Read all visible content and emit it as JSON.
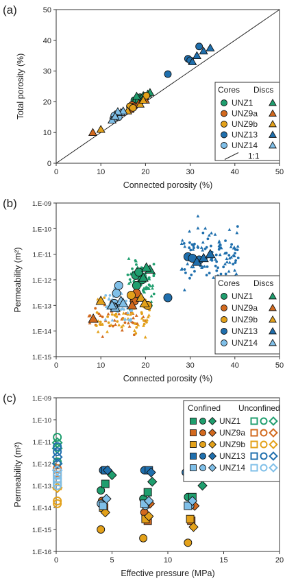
{
  "colors": {
    "UNZ1": "#1f9e6e",
    "UNZ9a": "#d2691e",
    "UNZ9b": "#e3a11a",
    "UNZ13": "#1f6fad",
    "UNZ14": "#7fbfe8"
  },
  "chart_data": [
    {
      "panel": "(a)",
      "type": "scatter",
      "xlabel": "Connected porosity (%)",
      "ylabel": "Total porosity (%)",
      "xlim": [
        0,
        50
      ],
      "ylim": [
        0,
        50
      ],
      "xticks": [
        "0",
        "10",
        "20",
        "30",
        "40",
        "50"
      ],
      "yticks": [
        "0",
        "10",
        "20",
        "30",
        "40",
        "50"
      ],
      "line_label": "1:1",
      "legend": {
        "headers": [
          "Cores",
          "Discs"
        ],
        "entries": [
          "UNZ1",
          "UNZ9a",
          "UNZ9b",
          "UNZ13",
          "UNZ14"
        ],
        "placement": "right"
      },
      "series": [
        {
          "name": "UNZ1",
          "marker": "circle",
          "points": [
            [
              17.5,
              20.5
            ],
            [
              18.2,
              21.0
            ],
            [
              18.8,
              21.5
            ],
            [
              19.2,
              21.2
            ],
            [
              17.8,
              19.8
            ],
            [
              18.5,
              20.2
            ]
          ]
        },
        {
          "name": "UNZ1",
          "marker": "triangle",
          "points": [
            [
              19.5,
              22.0
            ],
            [
              20.5,
              22.5
            ],
            [
              21.0,
              23.0
            ],
            [
              18.0,
              21.8
            ],
            [
              19.8,
              21.8
            ]
          ]
        },
        {
          "name": "UNZ9a",
          "marker": "circle",
          "points": [
            [
              17.0,
              19.0
            ],
            [
              17.5,
              18.5
            ],
            [
              16.8,
              18.2
            ]
          ]
        },
        {
          "name": "UNZ9a",
          "marker": "triangle",
          "points": [
            [
              8.2,
              10.0
            ],
            [
              18.5,
              19.5
            ],
            [
              20.0,
              20.5
            ],
            [
              16.5,
              17.5
            ]
          ]
        },
        {
          "name": "UNZ9b",
          "marker": "circle",
          "points": [
            [
              20.2,
              22.0
            ],
            [
              16.5,
              18.5
            ],
            [
              17.2,
              18.0
            ]
          ]
        },
        {
          "name": "UNZ9b",
          "marker": "triangle",
          "points": [
            [
              10.0,
              11.0
            ],
            [
              18.8,
              19.2
            ],
            [
              19.5,
              20.5
            ],
            [
              16.0,
              17.0
            ]
          ]
        },
        {
          "name": "UNZ13",
          "marker": "circle",
          "points": [
            [
              25.0,
              29.0
            ],
            [
              29.5,
              34.0
            ],
            [
              32.0,
              38.0
            ],
            [
              30.0,
              33.5
            ]
          ]
        },
        {
          "name": "UNZ13",
          "marker": "triangle",
          "points": [
            [
              31.5,
              35.0
            ],
            [
              33.0,
              36.5
            ],
            [
              34.5,
              37.5
            ],
            [
              30.5,
              33.0
            ]
          ]
        },
        {
          "name": "UNZ14",
          "marker": "circle",
          "points": [
            [
              12.8,
              14.5
            ],
            [
              13.5,
              16.0
            ],
            [
              14.0,
              15.0
            ],
            [
              13.0,
              15.5
            ]
          ]
        },
        {
          "name": "UNZ14",
          "marker": "triangle",
          "points": [
            [
              12.5,
              14.0
            ],
            [
              14.5,
              16.5
            ],
            [
              15.0,
              17.0
            ],
            [
              13.8,
              16.8
            ],
            [
              13.2,
              15.2
            ]
          ]
        }
      ]
    },
    {
      "panel": "(b)",
      "type": "scatter",
      "xlabel": "Connected porosity (%)",
      "ylabel": "Permeability (m²)",
      "xlim": [
        0,
        50
      ],
      "ylim_log10": [
        -15,
        -9
      ],
      "xticks": [
        "0",
        "10",
        "20",
        "30",
        "40",
        "50"
      ],
      "yticks": [
        "1.E-15",
        "1.E-14",
        "1.E-13",
        "1.E-12",
        "1.E-11",
        "1.E-10",
        "1.E-09"
      ],
      "legend": {
        "headers": [
          "Cores",
          "Discs"
        ],
        "entries": [
          "UNZ1",
          "UNZ9a",
          "UNZ9b",
          "UNZ13",
          "UNZ14"
        ],
        "placement": "bottom-right"
      },
      "series": [
        {
          "name": "UNZ1",
          "marker": "circle",
          "points": [
            [
              17.8,
              1.5e-12
            ],
            [
              18.5,
              2e-12
            ],
            [
              19.2,
              1e-12
            ],
            [
              18.0,
              6e-13
            ]
          ]
        },
        {
          "name": "UNZ1",
          "marker": "triangle",
          "points": [
            [
              21.0,
              2.5e-12
            ],
            [
              20.2,
              3e-12
            ],
            [
              19.5,
              1.2e-12
            ]
          ]
        },
        {
          "name": "UNZ9a",
          "marker": "circle",
          "points": [
            [
              17.5,
              1.5e-13
            ],
            [
              18.0,
              3e-13
            ]
          ]
        },
        {
          "name": "UNZ9a",
          "marker": "triangle",
          "points": [
            [
              8.3,
              3e-14
            ],
            [
              17.0,
              1e-13
            ]
          ]
        },
        {
          "name": "UNZ9b",
          "marker": "circle",
          "points": [
            [
              20.5,
              1e-13
            ],
            [
              16.8,
              2.5e-13
            ]
          ]
        },
        {
          "name": "UNZ9b",
          "marker": "triangle",
          "points": [
            [
              10.0,
              1.5e-13
            ],
            [
              19.0,
              2e-13
            ],
            [
              19.8,
              1.2e-13
            ]
          ]
        },
        {
          "name": "UNZ13",
          "marker": "circle",
          "points": [
            [
              25.0,
              2e-13
            ],
            [
              29.5,
              8e-12
            ],
            [
              32.0,
              6e-12
            ],
            [
              30.5,
              7e-12
            ]
          ]
        },
        {
          "name": "UNZ13",
          "marker": "triangle",
          "points": [
            [
              31.5,
              5e-12
            ],
            [
              33.0,
              7e-12
            ],
            [
              34.5,
              1e-11
            ]
          ]
        },
        {
          "name": "UNZ14",
          "marker": "circle",
          "points": [
            [
              13.0,
              1.2e-13
            ],
            [
              13.5,
              3e-13
            ],
            [
              14.0,
              6e-13
            ],
            [
              12.8,
              9e-14
            ]
          ]
        },
        {
          "name": "UNZ14",
          "marker": "triangle",
          "points": [
            [
              13.2,
              8e-14
            ],
            [
              14.5,
              1.5e-13
            ],
            [
              15.0,
              1.2e-13
            ],
            [
              12.5,
              1e-13
            ]
          ]
        }
      ],
      "scatter_clouds": [
        {
          "name": "UNZ1",
          "x_range": [
            16,
            22
          ],
          "log_range": [
            -13.5,
            -10.8
          ],
          "n": 70
        },
        {
          "name": "UNZ9a",
          "x_range": [
            7,
            20
          ],
          "log_range": [
            -14.5,
            -12.3
          ],
          "n": 45
        },
        {
          "name": "UNZ9b",
          "x_range": [
            9,
            21
          ],
          "log_range": [
            -14.5,
            -12.4
          ],
          "n": 55
        },
        {
          "name": "UNZ13",
          "x_range": [
            28,
            41
          ],
          "log_range": [
            -12.7,
            -9.3
          ],
          "n": 110
        },
        {
          "name": "UNZ14",
          "x_range": [
            11,
            17
          ],
          "log_range": [
            -13.8,
            -12.2
          ],
          "n": 60
        }
      ]
    },
    {
      "panel": "(c)",
      "type": "scatter",
      "xlabel": "Effective pressure (MPa)",
      "ylabel": "Permeability (m²)",
      "xlim": [
        0,
        20
      ],
      "ylim_log10": [
        -16,
        -9
      ],
      "xticks": [
        "0",
        "5",
        "10",
        "15",
        "20"
      ],
      "yticks": [
        "1.E-16",
        "1.E-15",
        "1.E-14",
        "1.E-13",
        "1.E-12",
        "1.E-11",
        "1.E-10",
        "1.E-09"
      ],
      "legend": {
        "headers": [
          "Confined",
          "Unconfined"
        ],
        "entries": [
          "UNZ1",
          "UNZ9a",
          "UNZ9b",
          "UNZ13",
          "UNZ14"
        ],
        "placement": "top-right"
      },
      "series": [
        {
          "name": "UNZ1",
          "marker": "circle",
          "points": [
            [
              4.0,
              6e-14
            ],
            [
              7.8,
              2.5e-14
            ],
            [
              11.8,
              3e-14
            ]
          ]
        },
        {
          "name": "UNZ1",
          "marker": "square",
          "points": [
            [
              4.4,
              1.2e-13
            ],
            [
              8.2,
              5e-14
            ],
            [
              12.2,
              3e-14
            ]
          ]
        },
        {
          "name": "UNZ1",
          "marker": "diamond",
          "points": [
            [
              5.0,
              3e-13
            ],
            [
              8.6,
              1.5e-13
            ],
            [
              13.1,
              1e-13
            ]
          ]
        },
        {
          "name": "UNZ9a",
          "marker": "circle",
          "points": [
            [
              4.1,
              2e-14
            ],
            [
              7.9,
              6e-15
            ],
            [
              11.9,
              1.2e-14
            ]
          ]
        },
        {
          "name": "UNZ9a",
          "marker": "square",
          "points": [
            [
              4.3,
              1e-14
            ],
            [
              8.2,
              2.5e-15
            ],
            [
              12.1,
              2.5e-15
            ]
          ]
        },
        {
          "name": "UNZ9a",
          "marker": "diamond",
          "points": [
            [
              4.5,
              2.5e-14
            ],
            [
              8.4,
              1.5e-14
            ],
            [
              12.4,
              1.2e-14
            ]
          ]
        },
        {
          "name": "UNZ9b",
          "marker": "circle",
          "points": [
            [
              4.0,
              1e-15
            ],
            [
              7.8,
              4e-16
            ],
            [
              11.8,
              2.5e-16
            ]
          ]
        },
        {
          "name": "UNZ9b",
          "marker": "square",
          "points": [
            [
              4.2,
              1e-14
            ],
            [
              8.0,
              3e-15
            ],
            [
              12.0,
              3e-15
            ]
          ]
        },
        {
          "name": "UNZ9b",
          "marker": "diamond",
          "points": [
            [
              4.4,
              6e-15
            ],
            [
              8.3,
              4e-15
            ],
            [
              12.3,
              1.3e-15
            ]
          ]
        },
        {
          "name": "UNZ13",
          "marker": "circle",
          "points": [
            [
              4.2,
              5e-13
            ],
            [
              7.9,
              5e-13
            ],
            [
              11.6,
              4e-13
            ]
          ]
        },
        {
          "name": "UNZ13",
          "marker": "square",
          "points": [
            [
              4.4,
              5e-13
            ],
            [
              8.3,
              5e-13
            ],
            [
              12.0,
              4e-13
            ]
          ]
        },
        {
          "name": "UNZ13",
          "marker": "diamond",
          "points": [
            [
              4.6,
              5e-13
            ],
            [
              8.5,
              4e-13
            ],
            [
              12.3,
              4e-13
            ]
          ]
        },
        {
          "name": "UNZ14",
          "marker": "circle",
          "points": [
            [
              4.0,
              1.5e-14
            ],
            [
              8.0,
              1.2e-14
            ],
            [
              12.0,
              1.2e-14
            ]
          ]
        },
        {
          "name": "UNZ14",
          "marker": "square",
          "points": [
            [
              4.2,
              1.2e-14
            ],
            [
              7.9,
              1.5e-14
            ],
            [
              11.8,
              1.2e-14
            ]
          ]
        },
        {
          "name": "UNZ14",
          "marker": "diamond",
          "points": [
            [
              4.5,
              2.5e-14
            ],
            [
              8.3,
              2e-14
            ],
            [
              12.2,
              2e-14
            ]
          ]
        },
        {
          "name": "UNZ1",
          "marker": "circle-open",
          "points": [
            [
              0.1,
              1.6e-11
            ],
            [
              0.1,
              1.2e-12
            ]
          ]
        },
        {
          "name": "UNZ1",
          "marker": "diamond-open",
          "points": [
            [
              0.1,
              9e-12
            ],
            [
              0.1,
              5e-12
            ]
          ]
        },
        {
          "name": "UNZ9a",
          "marker": "circle-open",
          "points": [
            [
              0.1,
              6e-13
            ],
            [
              0.1,
              3e-13
            ]
          ]
        },
        {
          "name": "UNZ9a",
          "marker": "square-open",
          "points": [
            [
              0.1,
              4e-13
            ]
          ]
        },
        {
          "name": "UNZ9b",
          "marker": "circle-open",
          "points": [
            [
              0.1,
              2e-14
            ],
            [
              0.1,
              1.5e-14
            ]
          ]
        },
        {
          "name": "UNZ9b",
          "marker": "square-open",
          "points": [
            [
              0.1,
              1e-13
            ],
            [
              0.1,
              1.5e-13
            ]
          ]
        },
        {
          "name": "UNZ9b",
          "marker": "diamond-open",
          "points": [
            [
              0.1,
              8e-14
            ]
          ]
        },
        {
          "name": "UNZ13",
          "marker": "circle-open",
          "points": [
            [
              0.1,
              3.5e-12
            ],
            [
              0.1,
              6e-12
            ]
          ]
        },
        {
          "name": "UNZ13",
          "marker": "diamond-open",
          "points": [
            [
              0.1,
              2e-12
            ],
            [
              0.1,
              1e-12
            ]
          ]
        },
        {
          "name": "UNZ14",
          "marker": "circle-open",
          "points": [
            [
              0.1,
              2e-13
            ],
            [
              0.1,
              1e-13
            ]
          ]
        },
        {
          "name": "UNZ14",
          "marker": "square-open",
          "points": [
            [
              0.1,
              3e-13
            ],
            [
              0.1,
              1.5e-13
            ]
          ]
        },
        {
          "name": "UNZ14",
          "marker": "diamond-open",
          "points": [
            [
              0.1,
              5e-13
            ]
          ]
        }
      ]
    }
  ]
}
